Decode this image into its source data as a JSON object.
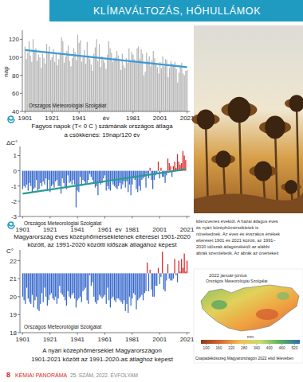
{
  "header": {
    "title": "KLÍMAVÁLTOZÁS, HŐHULLÁMOK"
  },
  "chart_data": [
    {
      "type": "bar",
      "title": "Fagyos napok (T< 0 C ) számának országos átlaga",
      "subtitle": "a csökkenés: 19nap/120 év",
      "y_label": "nap",
      "x_label": "év",
      "annotation": "Országos Meteorológiai Szolgálat",
      "color": "#b4b4b4",
      "x": [
        1901,
        1902,
        1903,
        1904,
        1905,
        1906,
        1907,
        1908,
        1909,
        1910,
        1911,
        1912,
        1913,
        1914,
        1915,
        1916,
        1917,
        1918,
        1919,
        1920,
        1921,
        1922,
        1923,
        1924,
        1925,
        1926,
        1927,
        1928,
        1929,
        1930,
        1931,
        1932,
        1933,
        1934,
        1935,
        1936,
        1937,
        1938,
        1939,
        1940,
        1941,
        1942,
        1943,
        1944,
        1945,
        1946,
        1947,
        1948,
        1949,
        1950,
        1951,
        1952,
        1953,
        1954,
        1955,
        1956,
        1957,
        1958,
        1959,
        1960,
        1961,
        1962,
        1963,
        1964,
        1965,
        1966,
        1967,
        1968,
        1969,
        1970,
        1971,
        1972,
        1973,
        1974,
        1975,
        1976,
        1977,
        1978,
        1979,
        1980,
        1981,
        1982,
        1983,
        1984,
        1985,
        1986,
        1987,
        1988,
        1989,
        1990,
        1991,
        1992,
        1993,
        1994,
        1995,
        1996,
        1997,
        1998,
        1999,
        2000,
        2001,
        2002,
        2003,
        2004,
        2005,
        2006,
        2007,
        2008,
        2009,
        2010,
        2011,
        2012,
        2013,
        2014,
        2015,
        2016,
        2017,
        2018,
        2019,
        2020,
        2021
      ],
      "values": [
        112,
        98,
        105,
        118,
        102,
        95,
        120,
        108,
        110,
        96,
        103,
        100,
        88,
        104,
        99,
        93,
        115,
        106,
        112,
        97,
        100,
        109,
        95,
        104,
        91,
        98,
        105,
        122,
        118,
        94,
        101,
        107,
        113,
        96,
        90,
        99,
        110,
        106,
        97,
        125,
        116,
        119,
        95,
        100,
        108,
        93,
        117,
        102,
        98,
        92,
        85,
        104,
        111,
        120,
        96,
        115,
        89,
        101,
        97,
        94,
        87,
        103,
        118,
        110,
        105,
        95,
        99,
        100,
        107,
        102,
        97,
        86,
        104,
        91,
        88,
        99,
        94,
        110,
        96,
        106,
        103,
        98,
        95,
        110,
        112,
        98,
        109,
        104,
        80,
        84,
        105,
        96,
        101,
        90,
        97,
        107,
        99,
        92,
        89,
        82,
        95,
        88,
        101,
        90,
        98,
        97,
        78,
        88,
        96,
        93,
        92,
        95,
        87,
        72,
        83,
        91,
        94,
        82,
        80,
        85,
        86
      ],
      "trend": {
        "x": [
          1901,
          2021
        ],
        "values": [
          108,
          89
        ],
        "color": "#3a9ad6"
      },
      "xlim": [
        1899,
        2023
      ],
      "xticks": [
        1901,
        1921,
        1941,
        1981,
        2001,
        2021
      ],
      "ylim": [
        40,
        130
      ],
      "yticks": [
        40,
        60,
        80,
        100,
        120
      ],
      "grid": false
    },
    {
      "type": "bar",
      "title": "Magyarország éves középhőmérsékletének eltérései 1901-2020",
      "subtitle": "között, az 1991-2020 közötti időszak átlagához képest",
      "y_label": "ΔC°",
      "x_label": "év",
      "annotation": "Országos Meteorológiai Szolgálat",
      "x": [
        1901,
        1902,
        1903,
        1904,
        1905,
        1906,
        1907,
        1908,
        1909,
        1910,
        1911,
        1912,
        1913,
        1914,
        1915,
        1916,
        1917,
        1918,
        1919,
        1920,
        1921,
        1922,
        1923,
        1924,
        1925,
        1926,
        1927,
        1928,
        1929,
        1930,
        1931,
        1932,
        1933,
        1934,
        1935,
        1936,
        1937,
        1938,
        1939,
        1940,
        1941,
        1942,
        1943,
        1944,
        1945,
        1946,
        1947,
        1948,
        1949,
        1950,
        1951,
        1952,
        1953,
        1954,
        1955,
        1956,
        1957,
        1958,
        1959,
        1960,
        1961,
        1962,
        1963,
        1964,
        1965,
        1966,
        1967,
        1968,
        1969,
        1970,
        1971,
        1972,
        1973,
        1974,
        1975,
        1976,
        1977,
        1978,
        1979,
        1980,
        1981,
        1982,
        1983,
        1984,
        1985,
        1986,
        1987,
        1988,
        1989,
        1990,
        1991,
        1992,
        1993,
        1994,
        1995,
        1996,
        1997,
        1998,
        1999,
        2000,
        2001,
        2002,
        2003,
        2004,
        2005,
        2006,
        2007,
        2008,
        2009,
        2010,
        2011,
        2012,
        2013,
        2014,
        2015,
        2016,
        2017,
        2018,
        2019,
        2020
      ],
      "values": [
        -1.2,
        -1.0,
        -1.1,
        -0.9,
        -1.3,
        -0.8,
        -1.0,
        -1.4,
        -1.2,
        -1.1,
        -0.6,
        -1.3,
        -1.2,
        -0.8,
        -1.0,
        -0.7,
        -0.9,
        -0.5,
        -1.3,
        -0.6,
        -1.4,
        -1.0,
        -0.9,
        -1.1,
        -0.7,
        -0.6,
        -1.0,
        -1.0,
        -1.5,
        -0.5,
        -0.8,
        -1.1,
        -1.2,
        -0.3,
        -0.8,
        -0.7,
        -0.9,
        -0.6,
        -0.9,
        -2.4,
        -1.3,
        -1.4,
        -0.4,
        -1.0,
        -0.6,
        -0.7,
        -0.9,
        -0.8,
        -0.6,
        -0.2,
        -0.4,
        -0.6,
        -0.8,
        -1.1,
        -1.0,
        -1.6,
        -0.7,
        -0.9,
        -0.8,
        -0.5,
        -0.3,
        -1.3,
        -1.0,
        -1.2,
        -1.3,
        -0.6,
        -0.9,
        -1.0,
        -1.1,
        -1.2,
        -1.0,
        -0.8,
        -1.2,
        -0.9,
        -0.7,
        -1.1,
        -0.7,
        -1.4,
        -0.9,
        -1.6,
        -0.9,
        -0.5,
        -0.6,
        -1.2,
        -1.4,
        -1.0,
        -1.3,
        -0.6,
        -0.5,
        -0.4,
        -1.1,
        -0.2,
        -0.5,
        0.2,
        -0.6,
        -1.2,
        -0.6,
        -0.3,
        -0.2,
        0.6,
        -0.5,
        0.2,
        -0.4,
        -0.4,
        -0.8,
        -0.3,
        0.8,
        0.5,
        0.3,
        -0.4,
        0.3,
        0.6,
        0.2,
        1.1,
        0.6,
        0.4,
        0.5,
        1.3,
        1.0,
        0.7
      ],
      "colors": [
        "#36c",
        "#36c",
        "#36c",
        "#36c",
        "#36c",
        "#36c",
        "#36c",
        "#36c",
        "#36c",
        "#36c",
        "#36c",
        "#36c",
        "#36c",
        "#36c",
        "#36c",
        "#36c",
        "#36c",
        "#36c",
        "#36c",
        "#36c",
        "#36c",
        "#36c",
        "#36c",
        "#36c",
        "#36c",
        "#36c",
        "#36c",
        "#36c",
        "#36c",
        "#36c",
        "#36c",
        "#36c",
        "#36c",
        "#36c",
        "#36c",
        "#36c",
        "#36c",
        "#36c",
        "#36c",
        "#36c",
        "#36c",
        "#36c",
        "#36c",
        "#36c",
        "#36c",
        "#36c",
        "#36c",
        "#36c",
        "#36c",
        "#36c",
        "#36c",
        "#36c",
        "#36c",
        "#36c",
        "#36c",
        "#36c",
        "#36c",
        "#36c",
        "#36c",
        "#36c",
        "#36c",
        "#36c",
        "#36c",
        "#36c",
        "#36c",
        "#36c",
        "#36c",
        "#36c",
        "#36c",
        "#36c",
        "#36c",
        "#36c",
        "#36c",
        "#36c",
        "#36c",
        "#36c",
        "#36c",
        "#36c",
        "#36c",
        "#36c",
        "#36c",
        "#36c",
        "#36c",
        "#36c",
        "#36c",
        "#36c",
        "#36c",
        "#36c",
        "#36c",
        "#36c",
        "#36c",
        "#36c",
        "#36c",
        "#d22",
        "#36c",
        "#36c",
        "#36c",
        "#36c",
        "#36c",
        "#d22",
        "#36c",
        "#d22",
        "#36c",
        "#36c",
        "#36c",
        "#36c",
        "#d22",
        "#d22",
        "#d22",
        "#36c",
        "#d22",
        "#d22",
        "#d22",
        "#d22",
        "#d22",
        "#d22",
        "#d22",
        "#d22",
        "#d22",
        "#d22"
      ],
      "trend": {
        "x": [
          1901,
          2020
        ],
        "values": [
          -1.5,
          0.1
        ],
        "color": "#2a9d8f"
      },
      "xlim": [
        1899,
        2023
      ],
      "xticks": [
        1901,
        1921,
        1941,
        1961,
        1981,
        2001,
        2021
      ],
      "ylim": [
        -3,
        1.6
      ],
      "yticks": [
        -3,
        -2,
        -1,
        0,
        1
      ],
      "grid": false
    },
    {
      "type": "bar",
      "title": "A nyári középhőmérséklet Magyarországon",
      "subtitle": "1901-2021 között az 1991-2020-as átlaghoz képest",
      "y_label": "C°",
      "annotation": "Országos Meteorológiai Szolgálat",
      "baseline": 21.3,
      "x": [
        1901,
        1902,
        1903,
        1904,
        1905,
        1906,
        1907,
        1908,
        1909,
        1910,
        1911,
        1912,
        1913,
        1914,
        1915,
        1916,
        1917,
        1918,
        1919,
        1920,
        1921,
        1922,
        1923,
        1924,
        1925,
        1926,
        1927,
        1928,
        1929,
        1930,
        1931,
        1932,
        1933,
        1934,
        1935,
        1936,
        1937,
        1938,
        1939,
        1940,
        1941,
        1942,
        1943,
        1944,
        1945,
        1946,
        1947,
        1948,
        1949,
        1950,
        1951,
        1952,
        1953,
        1954,
        1955,
        1956,
        1957,
        1958,
        1959,
        1960,
        1961,
        1962,
        1963,
        1964,
        1965,
        1966,
        1967,
        1968,
        1969,
        1970,
        1971,
        1972,
        1973,
        1974,
        1975,
        1976,
        1977,
        1978,
        1979,
        1980,
        1981,
        1982,
        1983,
        1984,
        1985,
        1986,
        1987,
        1988,
        1989,
        1990,
        1991,
        1992,
        1993,
        1994,
        1995,
        1996,
        1997,
        1998,
        1999,
        2000,
        2001,
        2002,
        2003,
        2004,
        2005,
        2006,
        2007,
        2008,
        2009,
        2010,
        2011,
        2012,
        2013,
        2014,
        2015,
        2016,
        2017,
        2018,
        2019,
        2020,
        2021
      ],
      "values": [
        20.0,
        19.8,
        19.6,
        20.5,
        19.9,
        19.7,
        19.6,
        20.1,
        19.4,
        19.8,
        20.0,
        19.3,
        19.2,
        19.6,
        20.2,
        19.7,
        20.5,
        20.0,
        19.5,
        19.8,
        20.1,
        20.2,
        19.9,
        19.8,
        20.0,
        19.6,
        19.9,
        20.6,
        20.2,
        20.1,
        20.0,
        19.8,
        19.5,
        20.3,
        20.0,
        19.9,
        20.1,
        20.2,
        19.9,
        19.4,
        19.8,
        19.9,
        20.0,
        19.7,
        20.3,
        20.4,
        20.5,
        19.8,
        19.6,
        21.2,
        20.6,
        20.8,
        20.0,
        19.7,
        19.6,
        19.8,
        20.1,
        20.0,
        19.9,
        20.0,
        20.1,
        19.6,
        20.5,
        19.8,
        19.4,
        19.9,
        20.0,
        19.8,
        19.7,
        19.9,
        19.9,
        19.8,
        19.7,
        19.6,
        19.8,
        19.2,
        19.6,
        19.1,
        20.0,
        19.5,
        19.9,
        20.2,
        20.1,
        19.3,
        19.8,
        19.9,
        20.0,
        20.1,
        19.8,
        20.2,
        20.3,
        21.9,
        20.3,
        21.5,
        20.4,
        20.0,
        20.0,
        20.6,
        20.6,
        21.6,
        20.7,
        21.1,
        22.5,
        20.4,
        20.3,
        20.9,
        21.8,
        21.0,
        20.9,
        20.9,
        21.0,
        22.1,
        21.2,
        20.8,
        22.0,
        21.4,
        22.1,
        21.6,
        22.4,
        21.4,
        22.0
      ],
      "colors": [
        "#36c",
        "#36c",
        "#36c",
        "#36c",
        "#36c",
        "#36c",
        "#36c",
        "#36c",
        "#36c",
        "#36c",
        "#36c",
        "#36c",
        "#36c",
        "#36c",
        "#36c",
        "#36c",
        "#36c",
        "#36c",
        "#36c",
        "#36c",
        "#36c",
        "#36c",
        "#36c",
        "#36c",
        "#36c",
        "#36c",
        "#36c",
        "#36c",
        "#36c",
        "#36c",
        "#36c",
        "#36c",
        "#36c",
        "#36c",
        "#36c",
        "#36c",
        "#36c",
        "#36c",
        "#36c",
        "#36c",
        "#36c",
        "#36c",
        "#36c",
        "#36c",
        "#36c",
        "#36c",
        "#36c",
        "#36c",
        "#36c",
        "#36c",
        "#36c",
        "#36c",
        "#36c",
        "#36c",
        "#36c",
        "#36c",
        "#36c",
        "#36c",
        "#36c",
        "#36c",
        "#36c",
        "#36c",
        "#36c",
        "#36c",
        "#36c",
        "#36c",
        "#36c",
        "#36c",
        "#36c",
        "#36c",
        "#36c",
        "#36c",
        "#36c",
        "#36c",
        "#36c",
        "#36c",
        "#36c",
        "#36c",
        "#36c",
        "#36c",
        "#36c",
        "#36c",
        "#36c",
        "#36c",
        "#36c",
        "#36c",
        "#36c",
        "#36c",
        "#36c",
        "#36c",
        "#36c",
        "#d22",
        "#36c",
        "#d22",
        "#36c",
        "#36c",
        "#36c",
        "#36c",
        "#36c",
        "#d22",
        "#36c",
        "#36c",
        "#d22",
        "#36c",
        "#36c",
        "#36c",
        "#d22",
        "#36c",
        "#36c",
        "#36c",
        "#36c",
        "#d22",
        "#36c",
        "#36c",
        "#d22",
        "#d22",
        "#d22",
        "#d22",
        "#d22",
        "#d22",
        "#d22"
      ],
      "xlim": [
        1899,
        2023
      ],
      "xticks": [
        1901,
        1921,
        1941,
        1961,
        1981,
        2001,
        2021
      ],
      "ylim": [
        18,
        22.6
      ],
      "yticks": [
        18,
        19,
        20,
        21,
        22
      ],
      "grid": false
    }
  ],
  "article": {
    "lines": [
      "kilencvenes évektől. A hazai átlagos éves",
      "és nyári középhőmérsékletek is",
      "növekednek. Az éves és évszakos értékek",
      "eltérését 1901 és 2021 között, az 1991–",
      "2020 időszak átlagértékétől az alábbi",
      "ábrák szemléltetik. Az ábrák az önértékeit"
    ]
  },
  "map": {
    "title": "2022 január-június",
    "source": "Országos Meteorológiai Szolgálat",
    "unit": "mm",
    "colorbar_range": [
      75,
      545
    ],
    "colorbar_ticks": [
      100,
      160,
      220,
      280,
      340,
      400,
      460,
      520
    ],
    "caption": "Csapadékösszeg Magyarországon 2022 első félévében"
  },
  "footer": {
    "page": "8",
    "journal": "KÉMIAI PANORÁMA",
    "issue": "25. SZÁM, 2022. ÉVFOLYAM"
  }
}
